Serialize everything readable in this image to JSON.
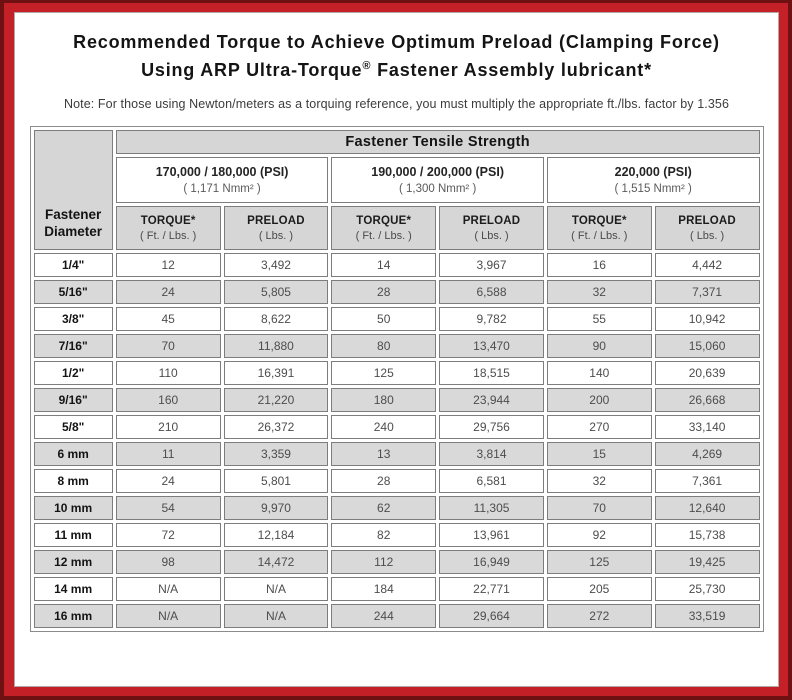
{
  "colors": {
    "frame_outer": "#6f1113",
    "frame_red": "#c32127",
    "row_alt": "#d9d9d9",
    "header_gray": "#d6d6d6",
    "cell_border": "#7d7d7d"
  },
  "title": {
    "line1": "Recommended Torque to Achieve Optimum Preload (Clamping Force)",
    "line2_pre": "Using ARP Ultra-Torque",
    "line2_sup": "®",
    "line2_post": " Fastener Assembly lubricant*"
  },
  "note": "Note: For those using Newton/meters as a torquing reference, you must multiply the appropriate ft./lbs. factor by 1.356",
  "table": {
    "tensile_header": "Fastener Tensile Strength",
    "diameter_header_line1": "Fastener",
    "diameter_header_line2": "Diameter",
    "groups": [
      {
        "psi": "170,000 / 180,000 (PSI)",
        "nmm": "( 1,171 Nmm² )"
      },
      {
        "psi": "190,000 / 200,000 (PSI)",
        "nmm": "( 1,300 Nmm² )"
      },
      {
        "psi": "220,000 (PSI)",
        "nmm": "( 1,515 Nmm² )"
      }
    ],
    "col_headers": {
      "torque_label": "TORQUE*",
      "torque_sub": "( Ft. / Lbs. )",
      "preload_label": "PRELOAD",
      "preload_sub": "( Lbs. )"
    },
    "rows": [
      {
        "dia": "1/4\"",
        "values": [
          "12",
          "3,492",
          "14",
          "3,967",
          "16",
          "4,442"
        ]
      },
      {
        "dia": "5/16\"",
        "values": [
          "24",
          "5,805",
          "28",
          "6,588",
          "32",
          "7,371"
        ]
      },
      {
        "dia": "3/8\"",
        "values": [
          "45",
          "8,622",
          "50",
          "9,782",
          "55",
          "10,942"
        ]
      },
      {
        "dia": "7/16\"",
        "values": [
          "70",
          "11,880",
          "80",
          "13,470",
          "90",
          "15,060"
        ]
      },
      {
        "dia": "1/2\"",
        "values": [
          "110",
          "16,391",
          "125",
          "18,515",
          "140",
          "20,639"
        ]
      },
      {
        "dia": "9/16\"",
        "values": [
          "160",
          "21,220",
          "180",
          "23,944",
          "200",
          "26,668"
        ]
      },
      {
        "dia": "5/8\"",
        "values": [
          "210",
          "26,372",
          "240",
          "29,756",
          "270",
          "33,140"
        ]
      },
      {
        "dia": "6 mm",
        "values": [
          "11",
          "3,359",
          "13",
          "3,814",
          "15",
          "4,269"
        ]
      },
      {
        "dia": "8 mm",
        "values": [
          "24",
          "5,801",
          "28",
          "6,581",
          "32",
          "7,361"
        ]
      },
      {
        "dia": "10 mm",
        "values": [
          "54",
          "9,970",
          "62",
          "11,305",
          "70",
          "12,640"
        ]
      },
      {
        "dia": "11 mm",
        "values": [
          "72",
          "12,184",
          "82",
          "13,961",
          "92",
          "15,738"
        ]
      },
      {
        "dia": "12 mm",
        "values": [
          "98",
          "14,472",
          "112",
          "16,949",
          "125",
          "19,425"
        ]
      },
      {
        "dia": "14 mm",
        "values": [
          "N/A",
          "N/A",
          "184",
          "22,771",
          "205",
          "25,730"
        ]
      },
      {
        "dia": "16 mm",
        "values": [
          "N/A",
          "N/A",
          "244",
          "29,664",
          "272",
          "33,519"
        ]
      }
    ]
  }
}
